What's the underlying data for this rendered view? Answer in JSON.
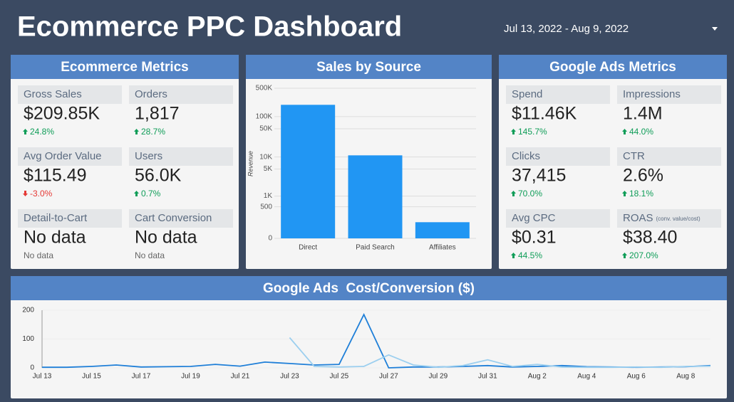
{
  "header": {
    "title": "Ecommerce PPC Dashboard",
    "date_range": "Jul 13, 2022 - Aug 9, 2022"
  },
  "ecommerce_metrics": {
    "title": "Ecommerce Metrics",
    "metrics": [
      {
        "label": "Gross Sales",
        "value": "$209.85K",
        "change": "24.8%"
      },
      {
        "label": "Orders",
        "value": "1,817",
        "change": "28.7%"
      },
      {
        "label": "Avg Order Value",
        "value": "$115.49",
        "change": "-3.0%"
      },
      {
        "label": "Users",
        "value": "56.0K",
        "change": "0.7%"
      },
      {
        "label": "Detail-to-Cart",
        "value": "No data",
        "change": "No data"
      },
      {
        "label": "Cart Conversion",
        "value": "No data",
        "change": "No data"
      }
    ]
  },
  "google_ads_metrics": {
    "title": "Google Ads Metrics",
    "metrics": [
      {
        "label": "Spend",
        "value": "$11.46K",
        "change": "145.7%"
      },
      {
        "label": "Impressions",
        "value": "1.4M",
        "change": "44.0%"
      },
      {
        "label": "Clicks",
        "value": "37,415",
        "change": "70.0%"
      },
      {
        "label": "CTR",
        "value": "2.6%",
        "change": "18.1%"
      },
      {
        "label": "Avg CPC",
        "value": "$0.31",
        "change": "44.5%"
      },
      {
        "label": "ROAS",
        "label_note": "(conv. value/cost)",
        "value": "$38.40",
        "change": "207.0%"
      }
    ]
  },
  "chart_data": [
    {
      "type": "bar",
      "title": "Sales by Source",
      "y_label": "Revenue",
      "log_scale": true,
      "grid": true,
      "color": "#2196f3",
      "categories": [
        "Direct",
        "Paid Search",
        "Affiliates"
      ],
      "values": [
        195000,
        11000,
        150
      ],
      "ylim": [
        0,
        500000
      ],
      "yticks": [
        0,
        500,
        {
          "value": 1000,
          "label": "1K"
        },
        {
          "value": 5000,
          "label": "5K"
        },
        {
          "value": 10000,
          "label": "10K"
        },
        {
          "value": 50000,
          "label": "50K"
        },
        {
          "value": 100000,
          "label": "100K"
        },
        {
          "value": 500000,
          "label": "500K"
        }
      ]
    },
    {
      "type": "line",
      "title": "Google Ads  Cost/Conversion ($)",
      "grid": true,
      "categories": [
        "Jul 13",
        null,
        "Jul 15",
        null,
        "Jul 17",
        null,
        "Jul 19",
        null,
        "Jul 21",
        null,
        "Jul 23",
        null,
        "Jul 25",
        null,
        "Jul 27",
        null,
        "Jul 29",
        null,
        "Jul 31",
        null,
        "Aug 2",
        null,
        "Aug 4",
        null,
        "Aug 6",
        null,
        "Aug 8",
        null
      ],
      "series": [
        {
          "color": "#1f7fd8",
          "values": [
            2,
            2,
            5,
            10,
            3,
            4,
            5,
            12,
            6,
            20,
            15,
            10,
            12,
            185,
            0,
            3,
            3,
            5,
            8,
            3,
            5,
            8,
            4,
            3,
            2,
            3,
            4,
            8
          ]
        },
        {
          "color": "#9ccfef",
          "values": [
            null,
            null,
            null,
            null,
            null,
            null,
            null,
            null,
            null,
            null,
            105,
            5,
            3,
            5,
            45,
            10,
            2,
            8,
            28,
            5,
            12,
            3,
            2,
            2,
            3,
            2,
            5,
            6
          ]
        }
      ],
      "ylim": [
        0,
        200
      ],
      "yticks": [
        0,
        100,
        200
      ]
    }
  ]
}
